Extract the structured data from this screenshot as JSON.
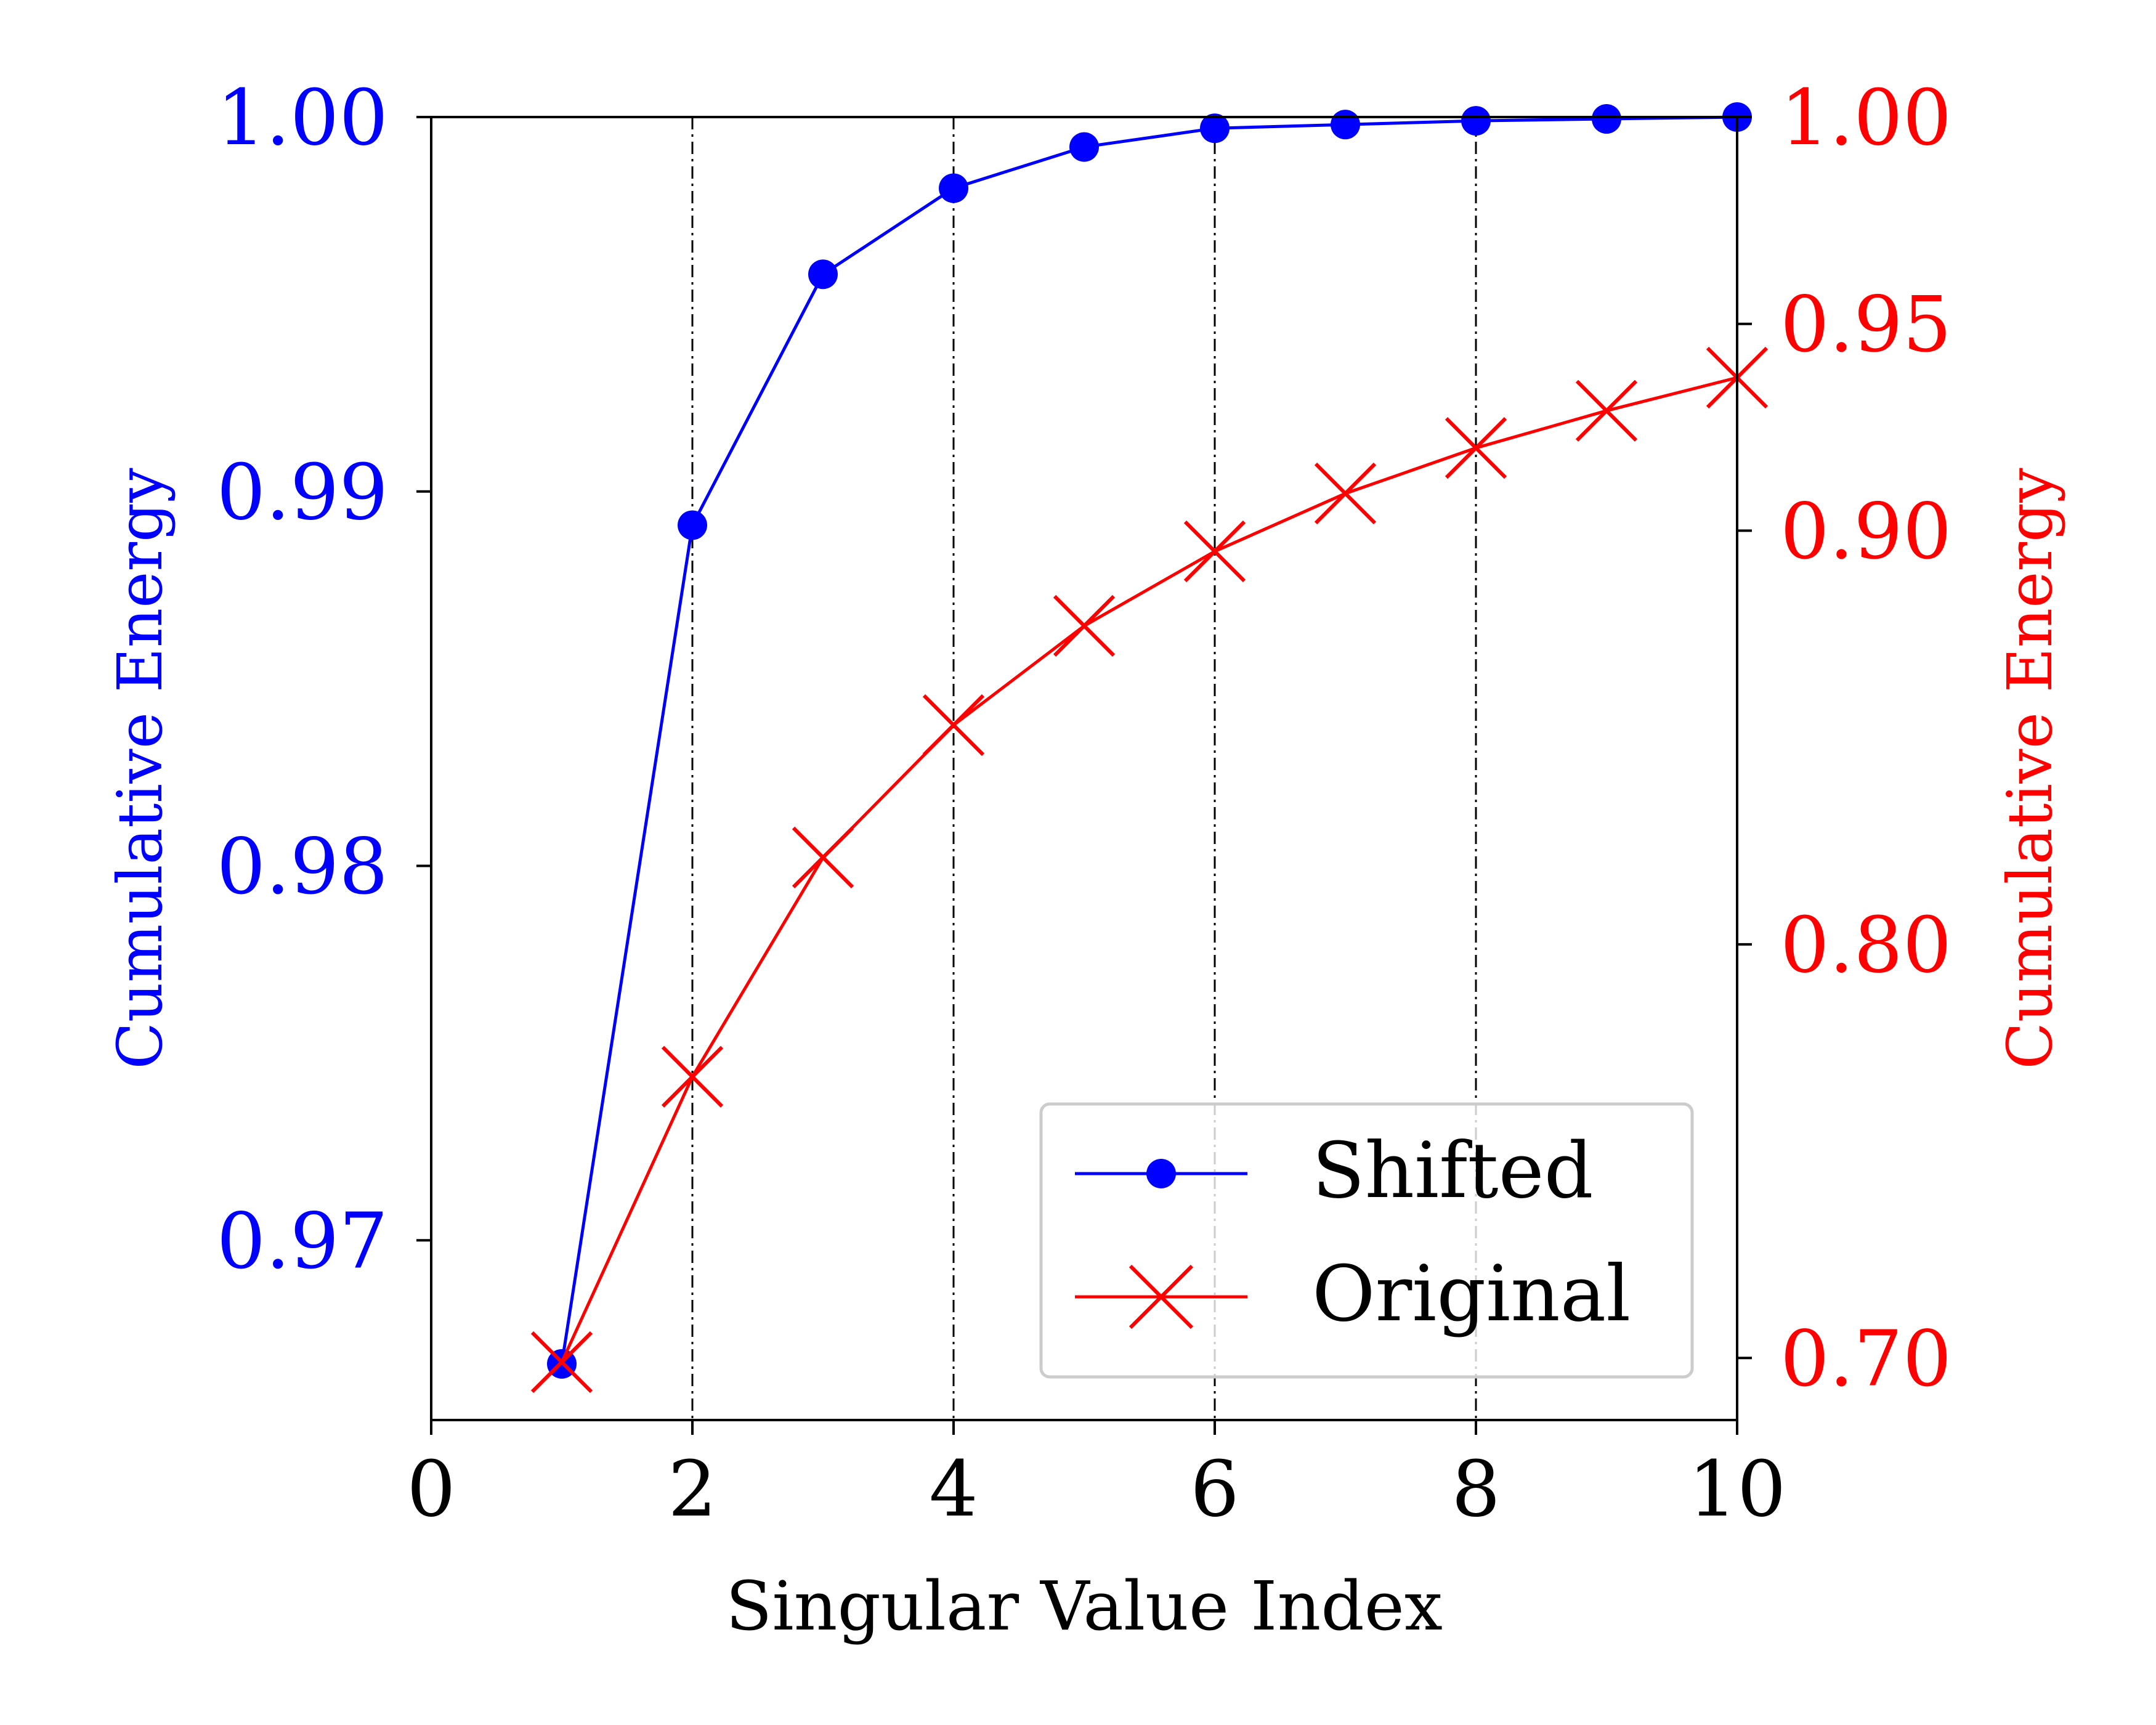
{
  "chart_data": {
    "type": "line",
    "xlabel": "Singular Value Index",
    "ylabel_left": "Cumulative Energy",
    "ylabel_right": "Cumulative Energy",
    "xlim": [
      0,
      10
    ],
    "xticks": [
      0,
      2,
      4,
      6,
      8,
      10
    ],
    "xtick_labels": [
      "0",
      "2",
      "4",
      "6",
      "8",
      "10"
    ],
    "ylim_left": [
      0.9652,
      1.0
    ],
    "yticks_left": [
      0.97,
      0.98,
      0.99,
      1.0
    ],
    "ytick_labels_left": [
      "0.97",
      "0.98",
      "0.99",
      "1.00"
    ],
    "ylim_right": [
      0.685,
      1.0
    ],
    "yticks_right": [
      0.7,
      0.8,
      0.9,
      0.95,
      1.0
    ],
    "ytick_labels_right": [
      "0.70",
      "0.80",
      "0.90",
      "0.95",
      "1.00"
    ],
    "vertical_gridlines_x": [
      2,
      4,
      6,
      8
    ],
    "grid": "vertical dash-dot at even x",
    "legend_position": "lower right",
    "colors": {
      "left_axis": "#0000ff",
      "right_axis": "#ff0000"
    },
    "series": [
      {
        "name": "Shifted",
        "axis": "left",
        "marker": "circle",
        "color": "#0000ff",
        "x": [
          1,
          2,
          3,
          4,
          5,
          6,
          7,
          8,
          9,
          10
        ],
        "y": [
          0.9667,
          0.9891,
          0.9958,
          0.9981,
          0.9992,
          0.9997,
          0.9998,
          0.9999,
          0.99995,
          1.0
        ]
      },
      {
        "name": "Original",
        "axis": "right",
        "marker": "x",
        "color": "#ff0000",
        "x": [
          1,
          2,
          3,
          4,
          5,
          6,
          7,
          8,
          9,
          10
        ],
        "y": [
          0.699,
          0.768,
          0.821,
          0.853,
          0.877,
          0.895,
          0.909,
          0.92,
          0.929,
          0.937
        ]
      }
    ]
  }
}
